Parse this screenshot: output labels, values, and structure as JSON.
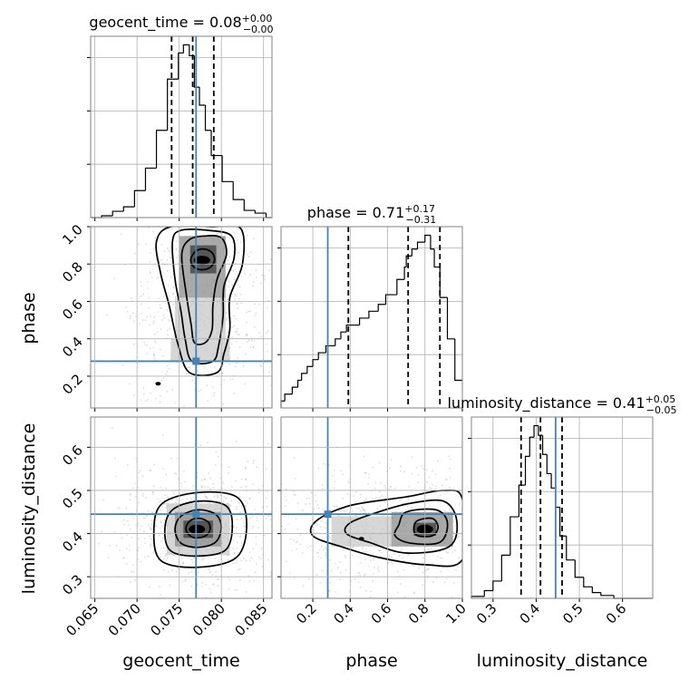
{
  "chart_data": {
    "type": "corner",
    "parameters": [
      "geocent_time",
      "phase",
      "luminosity_distance"
    ],
    "truths": {
      "geocent_time": 0.077,
      "phase": 0.28,
      "luminosity_distance": 0.445
    },
    "truth_color": "#4682b4",
    "contour_color": "#000000",
    "grid": true,
    "ranges": {
      "geocent_time": [
        0.0645,
        0.086
      ],
      "phase": [
        0.03,
        1.0
      ],
      "luminosity_distance": [
        0.25,
        0.67
      ]
    },
    "ticks": {
      "geocent_time": {
        "values": [
          0.065,
          0.07,
          0.075,
          0.08,
          0.085
        ],
        "labels": [
          "0.065",
          "0.070",
          "0.075",
          "0.080",
          "0.085"
        ]
      },
      "phase": {
        "values": [
          0.2,
          0.4,
          0.6,
          0.8,
          1.0
        ],
        "labels": [
          "0.2",
          "0.4",
          "0.6",
          "0.8",
          "1.0"
        ]
      },
      "luminosity_distance": {
        "values": [
          0.3,
          0.4,
          0.5,
          0.6
        ],
        "labels": [
          "0.3",
          "0.4",
          "0.5",
          "0.6"
        ]
      }
    },
    "axis_labels": {
      "geocent_time": "geocent_time",
      "phase": "phase",
      "luminosity_distance": "luminosity_distance"
    },
    "titles": [
      {
        "param": "geocent_time",
        "prefix": "geocent_time = ",
        "value": "0.08",
        "plus": "+0.00",
        "minus": "−0.00"
      },
      {
        "param": "phase",
        "prefix": "phase = ",
        "value": "0.71",
        "plus": "+0.17",
        "minus": "−0.31"
      },
      {
        "param": "luminosity_distance",
        "prefix": "luminosity_distance = ",
        "value": "0.41",
        "plus": "+0.05",
        "minus": "−0.05"
      }
    ],
    "quantiles": {
      "geocent_time": [
        0.0741,
        0.0766,
        0.0791
      ],
      "phase": [
        0.39,
        0.71,
        0.88
      ],
      "luminosity_distance": [
        0.365,
        0.41,
        0.46
      ]
    },
    "histograms": {
      "geocent_time": {
        "bin_edges": [
          0.0645,
          0.0658,
          0.0671,
          0.0684,
          0.0697,
          0.071,
          0.0723,
          0.0736,
          0.0749,
          0.0755,
          0.0762,
          0.0768,
          0.0774,
          0.0781,
          0.0788,
          0.0801,
          0.0814,
          0.0827,
          0.084,
          0.0853,
          0.086
        ],
        "counts": [
          0,
          2,
          7,
          12,
          30,
          55,
          97,
          154,
          183,
          192,
          180,
          145,
          125,
          97,
          69,
          40,
          20,
          8,
          5,
          0
        ]
      },
      "phase": {
        "bin_edges": [
          0.03,
          0.05,
          0.09,
          0.12,
          0.14,
          0.17,
          0.2,
          0.23,
          0.27,
          0.32,
          0.35,
          0.38,
          0.45,
          0.5,
          0.55,
          0.59,
          0.65,
          0.69,
          0.7,
          0.73,
          0.76,
          0.8,
          0.83,
          0.85,
          0.88,
          0.92,
          0.96,
          1.0
        ],
        "counts": [
          5,
          10,
          15,
          20,
          25,
          30,
          35,
          40,
          45,
          50,
          55,
          60,
          65,
          70,
          75,
          82,
          93,
          102,
          110,
          115,
          120,
          125,
          115,
          102,
          80,
          50,
          20
        ]
      },
      "luminosity_distance": {
        "bin_edges": [
          0.25,
          0.28,
          0.3,
          0.32,
          0.34,
          0.36,
          0.375,
          0.385,
          0.395,
          0.405,
          0.415,
          0.425,
          0.435,
          0.445,
          0.455,
          0.47,
          0.49,
          0.51,
          0.53,
          0.55,
          0.58,
          0.62,
          0.67
        ],
        "counts": [
          2,
          8,
          18,
          45,
          85,
          118,
          148,
          168,
          180,
          170,
          150,
          130,
          115,
          95,
          65,
          40,
          22,
          12,
          6,
          3,
          0,
          0
        ]
      }
    },
    "density_2d": [
      {
        "x": "geocent_time",
        "y": "phase",
        "mode": [
          0.0777,
          0.82
        ],
        "cells": [
          {
            "x": [
              0.0763,
              0.0794
            ],
            "y": [
              0.75,
              0.9
            ],
            "level": 3
          },
          {
            "x": [
              0.075,
              0.0805
            ],
            "y": [
              0.62,
              0.95
            ],
            "level": 2
          },
          {
            "x": [
              0.0745,
              0.0805
            ],
            "y": [
              0.4,
              0.62
            ],
            "level": 1
          },
          {
            "x": [
              0.074,
              0.081
            ],
            "y": [
              0.28,
              0.4
            ],
            "level": 1
          }
        ],
        "contours": [
          {
            "level": 0.5,
            "points": [
              [
                0.0764,
                0.83
              ],
              [
                0.077,
                0.87
              ],
              [
                0.078,
                0.88
              ],
              [
                0.0789,
                0.86
              ],
              [
                0.0792,
                0.82
              ],
              [
                0.0786,
                0.78
              ],
              [
                0.0775,
                0.77
              ],
              [
                0.0766,
                0.79
              ]
            ]
          },
          {
            "level": 1.0,
            "points": [
              [
                0.0753,
                0.85
              ],
              [
                0.0762,
                0.93
              ],
              [
                0.078,
                0.95
              ],
              [
                0.08,
                0.94
              ],
              [
                0.0806,
                0.85
              ],
              [
                0.0795,
                0.72
              ],
              [
                0.079,
                0.58
              ],
              [
                0.0789,
                0.45
              ],
              [
                0.0781,
                0.38
              ],
              [
                0.0768,
                0.38
              ],
              [
                0.0764,
                0.48
              ],
              [
                0.0758,
                0.65
              ]
            ]
          },
          {
            "level": 1.5,
            "points": [
              [
                0.0742,
                0.92
              ],
              [
                0.0752,
                0.98
              ],
              [
                0.0785,
                0.98
              ],
              [
                0.0812,
                0.95
              ],
              [
                0.0815,
                0.83
              ],
              [
                0.0803,
                0.68
              ],
              [
                0.0802,
                0.52
              ],
              [
                0.0797,
                0.37
              ],
              [
                0.079,
                0.28
              ],
              [
                0.0765,
                0.28
              ],
              [
                0.0757,
                0.4
              ],
              [
                0.0752,
                0.55
              ],
              [
                0.0745,
                0.72
              ]
            ]
          },
          {
            "level": 2.0,
            "points": [
              [
                0.0723,
                0.92
              ],
              [
                0.074,
                1.0
              ],
              [
                0.079,
                1.0
              ],
              [
                0.0823,
                0.99
              ],
              [
                0.0825,
                0.8
              ],
              [
                0.081,
                0.62
              ],
              [
                0.081,
                0.45
              ],
              [
                0.0803,
                0.32
              ],
              [
                0.0795,
                0.22
              ],
              [
                0.0762,
                0.22
              ],
              [
                0.0748,
                0.38
              ],
              [
                0.0738,
                0.58
              ],
              [
                0.0728,
                0.75
              ]
            ]
          }
        ],
        "isolated": [
          [
            0.0725,
            0.16
          ]
        ]
      },
      {
        "x": "geocent_time",
        "y": "luminosity_distance",
        "mode": [
          0.0771,
          0.41
        ],
        "cells": [
          {
            "x": [
              0.0755,
              0.079
            ],
            "y": [
              0.39,
              0.43
            ],
            "level": 3
          },
          {
            "x": [
              0.0745,
              0.08
            ],
            "y": [
              0.37,
              0.45
            ],
            "level": 2
          },
          {
            "x": [
              0.0735,
              0.081
            ],
            "y": [
              0.35,
              0.47
            ],
            "level": 1
          }
        ],
        "contours": [
          {
            "level": 0.5,
            "points": [
              [
                0.0758,
                0.41
              ],
              [
                0.0763,
                0.43
              ],
              [
                0.0775,
                0.435
              ],
              [
                0.0785,
                0.425
              ],
              [
                0.0786,
                0.405
              ],
              [
                0.0778,
                0.392
              ],
              [
                0.0765,
                0.392
              ]
            ]
          },
          {
            "level": 1.0,
            "points": [
              [
                0.0745,
                0.41
              ],
              [
                0.0752,
                0.44
              ],
              [
                0.0772,
                0.455
              ],
              [
                0.0793,
                0.445
              ],
              [
                0.08,
                0.415
              ],
              [
                0.0793,
                0.38
              ],
              [
                0.0772,
                0.368
              ],
              [
                0.0752,
                0.378
              ]
            ]
          },
          {
            "level": 1.5,
            "points": [
              [
                0.0733,
                0.41
              ],
              [
                0.0742,
                0.455
              ],
              [
                0.0772,
                0.475
              ],
              [
                0.0805,
                0.465
              ],
              [
                0.0813,
                0.42
              ],
              [
                0.0805,
                0.362
              ],
              [
                0.0772,
                0.348
              ],
              [
                0.074,
                0.36
              ]
            ]
          },
          {
            "level": 2.0,
            "points": [
              [
                0.072,
                0.41
              ],
              [
                0.073,
                0.47
              ],
              [
                0.0772,
                0.495
              ],
              [
                0.0818,
                0.485
              ],
              [
                0.083,
                0.42
              ],
              [
                0.0818,
                0.345
              ],
              [
                0.0772,
                0.322
              ],
              [
                0.0728,
                0.338
              ]
            ]
          }
        ],
        "isolated": []
      },
      {
        "x": "phase",
        "y": "luminosity_distance",
        "mode": [
          0.8,
          0.41
        ],
        "cells": [
          {
            "x": [
              0.74,
              0.86
            ],
            "y": [
              0.395,
              0.425
            ],
            "level": 3
          },
          {
            "x": [
              0.62,
              0.95
            ],
            "y": [
              0.37,
              0.45
            ],
            "level": 2
          },
          {
            "x": [
              0.3,
              0.62
            ],
            "y": [
              0.37,
              0.44
            ],
            "level": 1
          }
        ],
        "contours": [
          {
            "level": 0.5,
            "points": [
              [
                0.74,
                0.41
              ],
              [
                0.76,
                0.43
              ],
              [
                0.84,
                0.435
              ],
              [
                0.87,
                0.415
              ],
              [
                0.84,
                0.395
              ],
              [
                0.76,
                0.395
              ]
            ]
          },
          {
            "level": 1.0,
            "points": [
              [
                0.66,
                0.42
              ],
              [
                0.7,
                0.45
              ],
              [
                0.86,
                0.455
              ],
              [
                0.92,
                0.425
              ],
              [
                0.88,
                0.38
              ],
              [
                0.72,
                0.378
              ],
              [
                0.64,
                0.395
              ]
            ]
          },
          {
            "level": 1.5,
            "points": [
              [
                0.4,
                0.425
              ],
              [
                0.55,
                0.45
              ],
              [
                0.72,
                0.47
              ],
              [
                0.9,
                0.475
              ],
              [
                0.97,
                0.43
              ],
              [
                0.93,
                0.37
              ],
              [
                0.7,
                0.355
              ],
              [
                0.5,
                0.38
              ],
              [
                0.38,
                0.4
              ]
            ]
          },
          {
            "level": 2.0,
            "points": [
              [
                0.22,
                0.43
              ],
              [
                0.4,
                0.465
              ],
              [
                0.7,
                0.485
              ],
              [
                0.9,
                0.5
              ],
              [
                1.0,
                0.48
              ],
              [
                1.0,
                0.34
              ],
              [
                0.8,
                0.328
              ],
              [
                0.55,
                0.345
              ],
              [
                0.35,
                0.37
              ],
              [
                0.2,
                0.395
              ]
            ]
          }
        ],
        "isolated": [
          [
            0.46,
            0.388
          ]
        ]
      }
    ]
  }
}
